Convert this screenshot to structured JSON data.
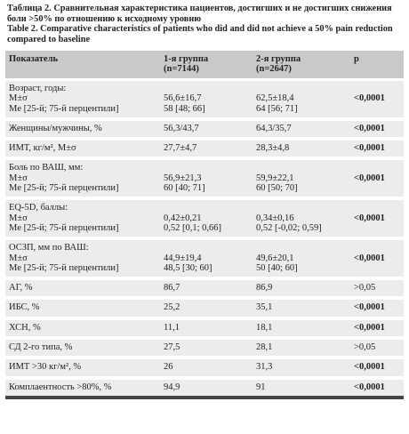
{
  "caption": {
    "ru": [
      "Таблица 2. Сравнительная характеристика пациентов, достигших и не достигших снижения",
      "боли >50% по отношению к исходному уровню"
    ],
    "en": [
      "Table 2. Comparative characteristics of patients who did and did not achieve a  50% pain reduction",
      "compared to baseline"
    ]
  },
  "table": {
    "header": {
      "label": "Показатель",
      "g1": [
        "1-я группа",
        "(n=7144)"
      ],
      "g2": [
        "2-я группа",
        "(n=2647)"
      ],
      "p": "p"
    },
    "rows": [
      {
        "label": [
          "Возраст, годы:",
          "M±σ",
          "Me [25-й; 75-й перцентили]"
        ],
        "g1": [
          "56,6±16,7",
          "58 [48; 66]"
        ],
        "g2": [
          "62,5±18,4",
          "64 [56; 71]"
        ],
        "p": "<0,0001"
      },
      {
        "label": [
          "Женщины/мужчины, %"
        ],
        "g1": [
          "56,3/43,7"
        ],
        "g2": [
          "64,3/35,7"
        ],
        "p": "<0,0001"
      },
      {
        "label": [
          "ИМТ, кг/м², M±σ"
        ],
        "g1": [
          "27,7±4,7"
        ],
        "g2": [
          "28,3±4,8"
        ],
        "p": "<0,0001"
      },
      {
        "label": [
          "Боль по ВАШ, мм:",
          "M±σ",
          "Me [25-й; 75-й перцентили]"
        ],
        "g1": [
          "56,9±21,3",
          "60 [40; 71]"
        ],
        "g2": [
          "59,9±22,1",
          "60 [50; 70]"
        ],
        "p": "<0,0001"
      },
      {
        "label": [
          "EQ-5D, баллы:",
          "M±σ",
          "Me [25-й; 75-й перцентили]"
        ],
        "g1": [
          "0,42±0,21",
          "0,52 [0,1; 0,66]"
        ],
        "g2": [
          "0,34±0,16",
          "0,52 [-0,02; 0,59]"
        ],
        "p": "<0,0001"
      },
      {
        "label": [
          "ОСЗП, мм по ВАШ:",
          "M±σ",
          "Me [25-й; 75-й перцентили]"
        ],
        "g1": [
          "44,9±19,4",
          "48,5 [30; 60]"
        ],
        "g2": [
          "49,6±20,1",
          "50 [40; 60]"
        ],
        "p": "<0,0001"
      },
      {
        "label": [
          "АГ, %"
        ],
        "g1": [
          "86,7"
        ],
        "g2": [
          "86,9"
        ],
        "p": ">0,05"
      },
      {
        "label": [
          "ИБС, %"
        ],
        "g1": [
          "25,2"
        ],
        "g2": [
          "35,1"
        ],
        "p": "<0,0001"
      },
      {
        "label": [
          "ХСН, %"
        ],
        "g1": [
          "11,1"
        ],
        "g2": [
          "18,1"
        ],
        "p": "<0,0001"
      },
      {
        "label": [
          "СД 2-го типа, %"
        ],
        "g1": [
          "27,5"
        ],
        "g2": [
          "28,1"
        ],
        "p": ">0,05"
      },
      {
        "label": [
          "ИМТ >30 кг/м², %"
        ],
        "g1": [
          "26"
        ],
        "g2": [
          "31,3"
        ],
        "p": "<0,0001"
      },
      {
        "label": [
          "Комплаентность >80%, %"
        ],
        "g1": [
          "94,9"
        ],
        "g2": [
          "91"
        ],
        "p": "<0,0001"
      }
    ]
  }
}
